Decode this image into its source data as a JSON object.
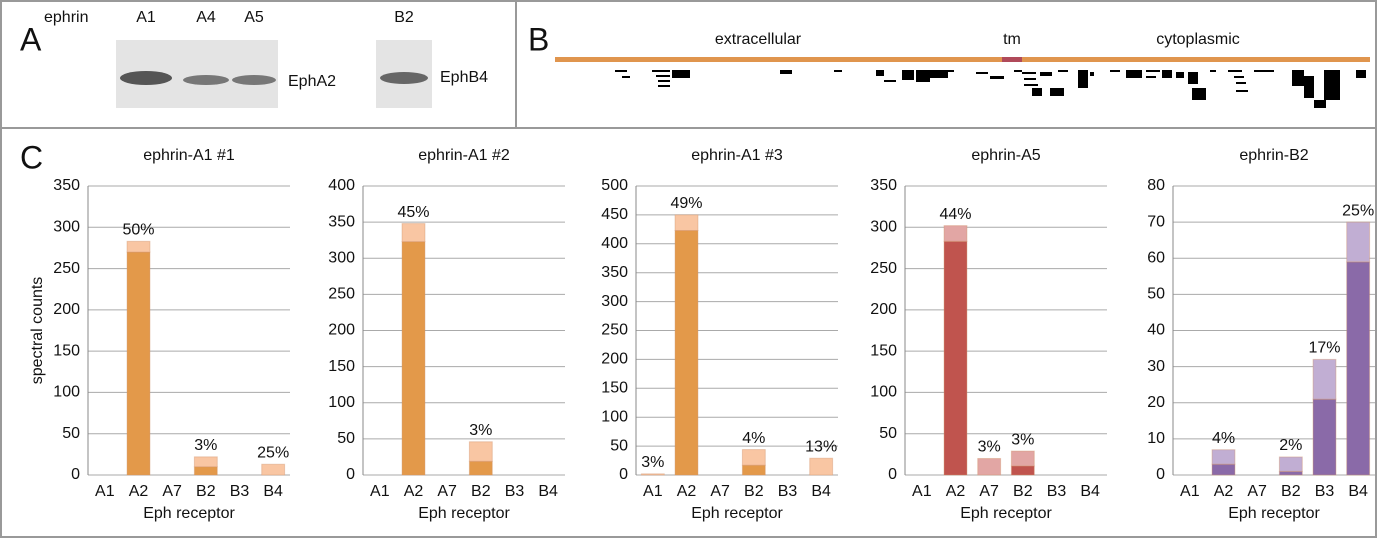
{
  "panel_a": {
    "letter": "A",
    "ephrin": "ephrin",
    "lanes": [
      "A1",
      "A4",
      "A5",
      "B2"
    ],
    "blots": [
      "EphA2",
      "EphB4"
    ]
  },
  "panel_b": {
    "letter": "B",
    "regions": [
      "extracellular",
      "tm",
      "cytoplasmic"
    ]
  },
  "panel_c": {
    "letter": "C"
  },
  "chart_data": [
    {
      "type": "bar",
      "stacked": true,
      "title": "ephrin-A1 #1",
      "ylabel": "spectral counts",
      "xlabel": "Eph receptor",
      "categories": [
        "A1",
        "A2",
        "A7",
        "B2",
        "B3",
        "B4"
      ],
      "series": [
        {
          "color": "#e3994a",
          "values": [
            0,
            270,
            0,
            10,
            0,
            0
          ]
        },
        {
          "color": "#f9c6a3",
          "values": [
            0,
            13,
            0,
            12,
            0,
            13
          ]
        }
      ],
      "annotations": [
        null,
        "50%",
        null,
        "3%",
        null,
        "25%"
      ],
      "ylim": [
        0,
        350
      ],
      "yticks": [
        0,
        50,
        100,
        150,
        200,
        250,
        300,
        350
      ],
      "grid": true
    },
    {
      "type": "bar",
      "stacked": true,
      "title": "ephrin-A1 #2",
      "xlabel": "Eph receptor",
      "categories": [
        "A1",
        "A2",
        "A7",
        "B2",
        "B3",
        "B4"
      ],
      "series": [
        {
          "color": "#e3994a",
          "values": [
            0,
            323,
            0,
            19,
            0,
            0
          ]
        },
        {
          "color": "#f9c6a3",
          "values": [
            0,
            25,
            0,
            27,
            0,
            0
          ]
        }
      ],
      "annotations": [
        null,
        "45%",
        null,
        "3%",
        null,
        null
      ],
      "ylim": [
        0,
        400
      ],
      "yticks": [
        0,
        50,
        100,
        150,
        200,
        250,
        300,
        350,
        400
      ],
      "grid": true
    },
    {
      "type": "bar",
      "stacked": true,
      "title": "ephrin-A1 #3",
      "xlabel": "Eph receptor",
      "categories": [
        "A1",
        "A2",
        "A7",
        "B2",
        "B3",
        "B4"
      ],
      "series": [
        {
          "color": "#e3994a",
          "values": [
            0,
            423,
            0,
            17,
            0,
            0
          ]
        },
        {
          "color": "#f9c6a3",
          "values": [
            2,
            27,
            0,
            27,
            0,
            29
          ]
        }
      ],
      "annotations": [
        "3%",
        "49%",
        null,
        "4%",
        null,
        "13%"
      ],
      "ylim": [
        0,
        500
      ],
      "yticks": [
        0,
        50,
        100,
        150,
        200,
        250,
        300,
        350,
        400,
        450,
        500
      ],
      "grid": true
    },
    {
      "type": "bar",
      "stacked": true,
      "title": "ephrin-A5",
      "xlabel": "Eph receptor",
      "categories": [
        "A1",
        "A2",
        "A7",
        "B2",
        "B3",
        "B4"
      ],
      "series": [
        {
          "color": "#c0544e",
          "values": [
            0,
            283,
            0,
            11,
            0,
            0
          ]
        },
        {
          "color": "#e2a6a4",
          "values": [
            0,
            19,
            20,
            18,
            0,
            0
          ]
        }
      ],
      "annotations": [
        null,
        "44%",
        "3%",
        "3%",
        null,
        null
      ],
      "ylim": [
        0,
        350
      ],
      "yticks": [
        0,
        50,
        100,
        150,
        200,
        250,
        300,
        350
      ],
      "grid": true
    },
    {
      "type": "bar",
      "stacked": true,
      "title": "ephrin-B2",
      "xlabel": "Eph receptor",
      "categories": [
        "A1",
        "A2",
        "A7",
        "B2",
        "B3",
        "B4"
      ],
      "series": [
        {
          "color": "#8a6aa8",
          "values": [
            0,
            3,
            0,
            1,
            21,
            59
          ]
        },
        {
          "color": "#c1aed3",
          "values": [
            0,
            4,
            0,
            4,
            11,
            11
          ]
        }
      ],
      "annotations": [
        null,
        "4%",
        null,
        "2%",
        "17%",
        "25%"
      ],
      "ylim": [
        0,
        80
      ],
      "yticks": [
        0,
        10,
        20,
        30,
        40,
        50,
        60,
        70,
        80
      ],
      "grid": true
    }
  ]
}
